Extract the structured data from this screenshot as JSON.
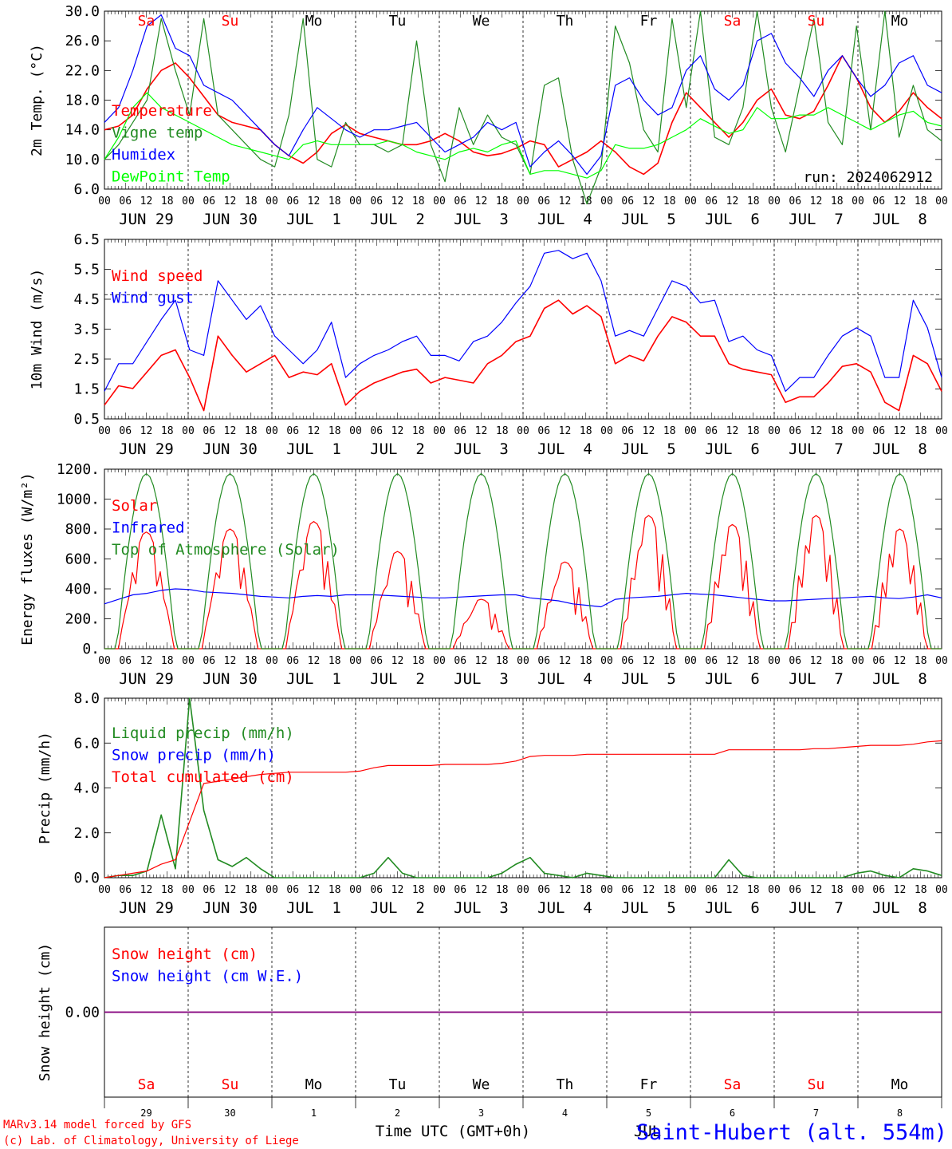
{
  "chart_data": [
    {
      "type": "line",
      "ylabel": "2m Temp. (°C)",
      "ylim": [
        6.0,
        30.0
      ],
      "yticks": [
        "6.0",
        "10.0",
        "14.0",
        "18.0",
        "22.0",
        "26.0",
        "30.0"
      ],
      "run_label": "run: 2024062912",
      "x_hours_step": 6,
      "series": [
        {
          "name": "Temperature",
          "color": "#ff0000",
          "values": [
            14,
            14.5,
            16,
            19.5,
            22,
            23,
            21,
            18.5,
            16,
            15,
            14.5,
            14,
            12,
            10.5,
            9.5,
            11,
            13.5,
            14.7,
            13.5,
            13,
            12.5,
            12,
            12,
            12.5,
            13.5,
            12.5,
            11,
            10.5,
            10.8,
            11.5,
            12.5,
            12,
            9,
            10,
            11,
            12.5,
            11,
            9,
            8,
            9.5,
            15,
            19,
            17,
            15,
            13,
            15,
            18,
            19.5,
            16,
            15.5,
            16.5,
            20,
            24,
            21,
            17,
            15,
            16.5,
            19,
            17,
            15.5
          ]
        },
        {
          "name": "Vigne temp",
          "color": "#228b22",
          "values": [
            10,
            12,
            15,
            18,
            29,
            22,
            16,
            29,
            16,
            14,
            12,
            10,
            9,
            16,
            29,
            10,
            9,
            15,
            12,
            12,
            11,
            12,
            26,
            12,
            7,
            17,
            12,
            16,
            13,
            12,
            8,
            20,
            21,
            10,
            4,
            9,
            28,
            23,
            14,
            11,
            29,
            17,
            30,
            13,
            12,
            17,
            30,
            17,
            11,
            20,
            29,
            15,
            12,
            28,
            14,
            30,
            13,
            20,
            14,
            12.5
          ]
        },
        {
          "name": "Humidex",
          "color": "#0000ff",
          "values": [
            15,
            17,
            22,
            28,
            29.5,
            25,
            24,
            20,
            19,
            18,
            16,
            14,
            12,
            10.5,
            14,
            17,
            15.5,
            14,
            13,
            14,
            14,
            14.5,
            15,
            13,
            11,
            12,
            13,
            15,
            14,
            15,
            9,
            11,
            12.5,
            10.5,
            8,
            10.5,
            20,
            21,
            18,
            16,
            17,
            22,
            24,
            19.5,
            18,
            20,
            26,
            27,
            23,
            21,
            18.5,
            22,
            24,
            21,
            18.5,
            20,
            23,
            24,
            20,
            19
          ]
        },
        {
          "name": "DewPoint Temp",
          "color": "#00ff00",
          "values": [
            10,
            13,
            17,
            19,
            17,
            16,
            15,
            14,
            13,
            12,
            11.5,
            11,
            10.5,
            10,
            12,
            12.5,
            12,
            12,
            12,
            12,
            12.5,
            12,
            11,
            10.5,
            10,
            11,
            11.5,
            11,
            12,
            12.5,
            8,
            8.5,
            8.5,
            8,
            7.5,
            8.5,
            12,
            11.5,
            11.5,
            12,
            13,
            14,
            15.5,
            14.5,
            13.5,
            14,
            17,
            15.5,
            15.5,
            16,
            16,
            17,
            16,
            15,
            14,
            15,
            16,
            16.5,
            15,
            14.5
          ]
        }
      ],
      "legend_placement": "left"
    },
    {
      "type": "line",
      "ylabel": "10m Wind (m/s)",
      "ylim": [
        0.5,
        7.0
      ],
      "yticks": [
        "0.5",
        "1.5",
        "2.5",
        "3.5",
        "4.5",
        "5.5",
        "6.5"
      ],
      "reference_line": 5.0,
      "series": [
        {
          "name": "Wind speed",
          "color": "#ff0000",
          "values": [
            1,
            1.7,
            1.6,
            2.2,
            2.8,
            3,
            2,
            0.8,
            3.5,
            2.8,
            2.2,
            2.5,
            2.8,
            2,
            2.2,
            2.1,
            2.5,
            1,
            1.5,
            1.8,
            2,
            2.2,
            2.3,
            1.8,
            2,
            1.9,
            1.8,
            2.5,
            2.8,
            3.3,
            3.5,
            4.5,
            4.8,
            4.3,
            4.6,
            4.2,
            2.5,
            2.8,
            2.6,
            3.5,
            4.2,
            4,
            3.5,
            3.5,
            2.5,
            2.3,
            2.2,
            2.1,
            1.1,
            1.3,
            1.3,
            1.8,
            2.4,
            2.5,
            2.2,
            1.1,
            0.8,
            2.8,
            2.5,
            1.5
          ]
        },
        {
          "name": "Wind gust",
          "color": "#0000ff",
          "values": [
            1.5,
            2.5,
            2.5,
            3.3,
            4.1,
            4.8,
            3,
            2.8,
            5.5,
            4.8,
            4.1,
            4.6,
            3.5,
            3,
            2.5,
            3,
            4,
            2,
            2.5,
            2.8,
            3,
            3.3,
            3.5,
            2.8,
            2.8,
            2.6,
            3.3,
            3.5,
            4,
            4.7,
            5.3,
            6.5,
            6.6,
            6.3,
            6.5,
            5.5,
            3.5,
            3.7,
            3.5,
            4.5,
            5.5,
            5.3,
            4.7,
            4.8,
            3.3,
            3.5,
            3,
            2.8,
            1.5,
            2,
            2,
            2.8,
            3.5,
            3.8,
            3.5,
            2,
            2,
            4.8,
            3.8,
            2
          ]
        }
      ],
      "legend_placement": "left"
    },
    {
      "type": "line",
      "ylabel": "Energy fluxes (W/m²)",
      "ylim": [
        0,
        1200
      ],
      "yticks": [
        "0.",
        "200.",
        "400.",
        "600.",
        "800.",
        "1000.",
        "1200."
      ],
      "series": [
        {
          "name": "Solar",
          "color": "#ff0000",
          "daily_peak": [
            780,
            800,
            850,
            650,
            330,
            580,
            890,
            830,
            890,
            800
          ]
        },
        {
          "name": "Infrared",
          "color": "#0000ff",
          "values": [
            300,
            330,
            360,
            370,
            390,
            400,
            395,
            380,
            375,
            370,
            360,
            350,
            345,
            340,
            350,
            355,
            350,
            360,
            360,
            360,
            355,
            350,
            345,
            340,
            340,
            345,
            350,
            355,
            360,
            360,
            340,
            330,
            320,
            300,
            290,
            280,
            330,
            340,
            345,
            350,
            360,
            370,
            365,
            360,
            350,
            340,
            330,
            320,
            320,
            325,
            330,
            335,
            340,
            345,
            350,
            340,
            335,
            345,
            360,
            340
          ]
        },
        {
          "name": "Top of Atmosphere (Solar)",
          "color": "#228b22",
          "daily_peak": 1170
        }
      ],
      "legend_placement": "left"
    },
    {
      "type": "line",
      "ylabel": "Precip (mm/h)",
      "ylim": [
        0,
        8.0
      ],
      "yticks": [
        "0.0",
        "2.0",
        "4.0",
        "6.0",
        "8.0"
      ],
      "series": [
        {
          "name": "Liquid precip (mm/h)",
          "color": "#228b22",
          "values": [
            0,
            0.1,
            0.1,
            0.3,
            2.8,
            0.4,
            8,
            3,
            0.8,
            0.5,
            0.9,
            0.4,
            0,
            0,
            0,
            0,
            0,
            0,
            0,
            0.2,
            0.9,
            0.2,
            0,
            0,
            0,
            0,
            0,
            0,
            0.2,
            0.6,
            0.9,
            0.2,
            0.1,
            0,
            0.2,
            0.1,
            0,
            0,
            0,
            0,
            0,
            0,
            0,
            0,
            0.8,
            0.1,
            0,
            0,
            0,
            0,
            0,
            0,
            0,
            0.2,
            0.3,
            0.1,
            0,
            0.4,
            0.3,
            0.1
          ]
        },
        {
          "name": "Snow precip (mm/h)",
          "color": "#0000ff",
          "values": []
        },
        {
          "name": "Total cumulated (cm)",
          "color": "#ff0000",
          "values": [
            0,
            0.1,
            0.2,
            0.3,
            0.6,
            0.8,
            2.5,
            4.2,
            4.3,
            4.4,
            4.5,
            4.6,
            4.65,
            4.7,
            4.7,
            4.7,
            4.7,
            4.7,
            4.75,
            4.9,
            5,
            5,
            5,
            5,
            5.05,
            5.05,
            5.05,
            5.05,
            5.1,
            5.2,
            5.4,
            5.45,
            5.45,
            5.45,
            5.5,
            5.5,
            5.5,
            5.5,
            5.5,
            5.5,
            5.5,
            5.5,
            5.5,
            5.5,
            5.7,
            5.7,
            5.7,
            5.7,
            5.7,
            5.7,
            5.75,
            5.75,
            5.8,
            5.85,
            5.9,
            5.9,
            5.9,
            5.95,
            6.05,
            6.1
          ]
        }
      ],
      "legend_placement": "left"
    },
    {
      "type": "line",
      "ylabel": "Snow height (cm)",
      "ylim": [
        -1,
        1
      ],
      "yticks": [
        "0.00"
      ],
      "series": [
        {
          "name": "Snow height (cm)",
          "color": "#ff0000",
          "values": [
            0,
            0
          ]
        },
        {
          "name": "Snow height (cm W.E.)",
          "color": "#0000ff",
          "values": [
            0,
            0
          ]
        }
      ],
      "legend_placement": "left"
    }
  ],
  "x_axis": {
    "hour_labels": [
      "00",
      "06",
      "12",
      "18"
    ],
    "date_labels": [
      "JUN 29",
      "JUN 30",
      "JUL  1",
      "JUL  2",
      "JUL  3",
      "JUL  4",
      "JUL  5",
      "JUL  6",
      "JUL  7",
      "JUL  8"
    ],
    "day_names": [
      "Sa",
      "Su",
      "Mo",
      "Tu",
      "We",
      "Th",
      "Fr",
      "Sa",
      "Su",
      "Mo"
    ],
    "day_name_colors": [
      "#ff0000",
      "#ff0000",
      "#000000",
      "#000000",
      "#000000",
      "#000000",
      "#000000",
      "#ff0000",
      "#ff0000",
      "#000000"
    ],
    "day_numbers": [
      "29",
      "30",
      "1",
      "2",
      "3",
      "4",
      "5",
      "6",
      "7",
      "8"
    ],
    "bottom_label": "Time UTC (GMT+0h)",
    "overlap_label": "JUL"
  },
  "footer": {
    "credit_line1": "MARv3.14 model forced by GFS",
    "credit_line2": "(c) Lab. of Climatology, University of Liege",
    "station": "Saint-Hubert (alt. 554m)"
  }
}
